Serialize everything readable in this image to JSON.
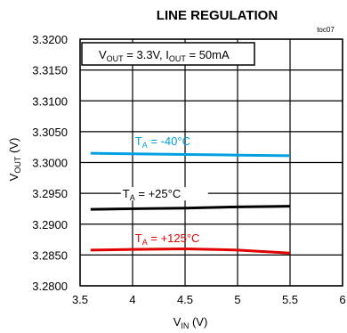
{
  "figure_code": "toc07",
  "chart_data": {
    "type": "line",
    "title": "LINE REGULATION",
    "condition": {
      "v_main": "V",
      "v_sub": "OUT",
      "v_val": " = 3.3V, ",
      "i_main": "I",
      "i_sub": "OUT",
      "i_val": " = 50mA"
    },
    "xlabel": {
      "main": "V",
      "sub": "IN",
      "unit": " (V)"
    },
    "ylabel": {
      "main": "V",
      "sub": "OUT",
      "unit": " (V)"
    },
    "xlim": [
      3.5,
      6
    ],
    "ylim": [
      3.28,
      3.32
    ],
    "x_ticks": [
      "3.5",
      "4",
      "4.5",
      "5",
      "5.5",
      "6"
    ],
    "y_ticks": [
      "3.2800",
      "3.2850",
      "3.2900",
      "3.2950",
      "3.3000",
      "3.3050",
      "3.3100",
      "3.3150",
      "3.3200"
    ],
    "grid": true,
    "series": [
      {
        "name_main": "T",
        "name_sub": "A",
        "name_val": " = -40°C",
        "color": "#00a0e0",
        "x": [
          3.6,
          4.0,
          4.5,
          5.0,
          5.5
        ],
        "y": [
          3.3015,
          3.3014,
          3.3013,
          3.3012,
          3.3011
        ]
      },
      {
        "name_main": "T",
        "name_sub": "A",
        "name_val": " = +25°C",
        "color": "#000000",
        "x": [
          3.6,
          4.0,
          4.5,
          5.0,
          5.5
        ],
        "y": [
          3.2924,
          3.2925,
          3.2926,
          3.2928,
          3.2929
        ]
      },
      {
        "name_main": "T",
        "name_sub": "A",
        "name_val": " = +125°C",
        "color": "#e00000",
        "x": [
          3.6,
          4.0,
          4.5,
          5.0,
          5.5
        ],
        "y": [
          3.2858,
          3.2859,
          3.286,
          3.2858,
          3.2853
        ]
      }
    ]
  }
}
